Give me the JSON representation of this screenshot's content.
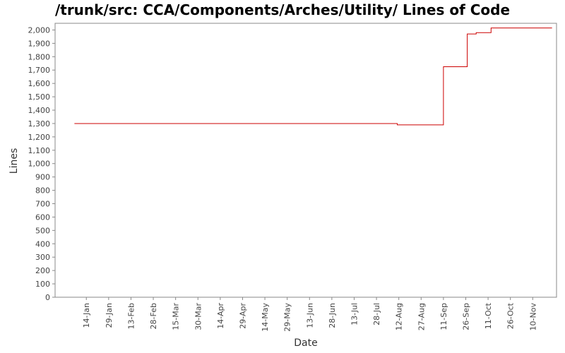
{
  "chart_data": {
    "type": "line",
    "title": "/trunk/src: CCA/Components/Arches/Utility/ Lines of Code",
    "xlabel": "Date",
    "ylabel": "Lines",
    "ylim": [
      0,
      2050
    ],
    "y_ticks": [
      "0",
      "100",
      "200",
      "300",
      "400",
      "500",
      "600",
      "700",
      "800",
      "900",
      "1,000",
      "1,100",
      "1,200",
      "1,300",
      "1,400",
      "1,500",
      "1,600",
      "1,700",
      "1,800",
      "1,900",
      "2,000"
    ],
    "x_ticks": [
      "14-Jan",
      "29-Jan",
      "13-Feb",
      "28-Feb",
      "15-Mar",
      "30-Mar",
      "14-Apr",
      "29-Apr",
      "14-May",
      "29-May",
      "13-Jun",
      "28-Jun",
      "13-Jul",
      "28-Jul",
      "12-Aug",
      "27-Aug",
      "11-Sep",
      "26-Sep",
      "11-Oct",
      "26-Oct",
      "10-Nov"
    ],
    "x_tick_days": [
      14,
      29,
      44,
      59,
      74,
      89,
      104,
      119,
      134,
      149,
      164,
      179,
      194,
      209,
      224,
      239,
      254,
      269,
      284,
      299,
      314
    ],
    "xlim": [
      -7,
      330
    ],
    "step": true,
    "series": [
      {
        "color": "#cc0000",
        "x": [
          6,
          223,
          254,
          270,
          276,
          286,
          327
        ],
        "y": [
          1300,
          1290,
          1725,
          1970,
          1980,
          2015,
          2015
        ]
      }
    ]
  }
}
